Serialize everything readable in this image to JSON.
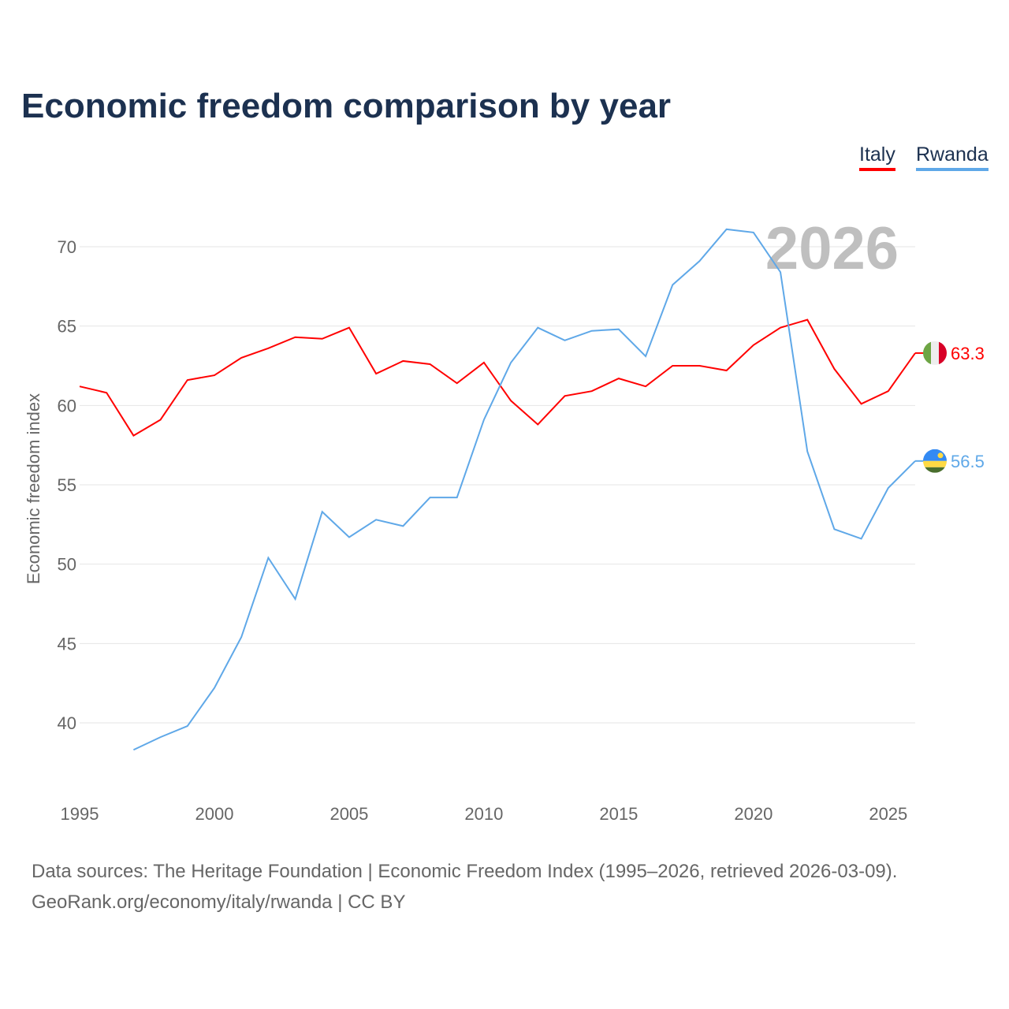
{
  "chart_data": {
    "type": "line",
    "title": "Economic freedom comparison by year",
    "xlabel": "",
    "ylabel": "Economic freedom index",
    "xlim": [
      1995,
      2026
    ],
    "ylim": [
      36,
      72.5
    ],
    "yticks": [
      40,
      45,
      50,
      55,
      60,
      65,
      70
    ],
    "xticks": [
      1995,
      2000,
      2005,
      2010,
      2015,
      2020,
      2025
    ],
    "current_year_label": "2026",
    "legend_position": "top-right",
    "series": [
      {
        "name": "Italy",
        "color": "#ff0000",
        "end_label": "63.3",
        "x": [
          1995,
          1996,
          1997,
          1998,
          1999,
          2000,
          2001,
          2002,
          2003,
          2004,
          2005,
          2006,
          2007,
          2008,
          2009,
          2010,
          2011,
          2012,
          2013,
          2014,
          2015,
          2016,
          2017,
          2018,
          2019,
          2020,
          2021,
          2022,
          2023,
          2024,
          2025,
          2026
        ],
        "values": [
          61.2,
          60.8,
          58.1,
          59.1,
          61.6,
          61.9,
          63.0,
          63.6,
          64.3,
          64.2,
          64.9,
          62.0,
          62.8,
          62.6,
          61.4,
          62.7,
          60.3,
          58.8,
          60.6,
          60.9,
          61.7,
          61.2,
          62.5,
          62.5,
          62.2,
          63.8,
          64.9,
          65.4,
          62.3,
          60.1,
          60.9,
          63.3
        ]
      },
      {
        "name": "Rwanda",
        "color": "#5fa8e8",
        "end_label": "56.5",
        "x": [
          1997,
          1998,
          1999,
          2000,
          2001,
          2002,
          2003,
          2004,
          2005,
          2006,
          2007,
          2008,
          2009,
          2010,
          2011,
          2012,
          2013,
          2014,
          2015,
          2016,
          2017,
          2018,
          2019,
          2020,
          2021,
          2022,
          2023,
          2024,
          2025,
          2026
        ],
        "values": [
          38.3,
          39.1,
          39.8,
          42.2,
          45.4,
          50.4,
          47.8,
          53.3,
          51.7,
          52.8,
          52.4,
          54.2,
          54.2,
          59.1,
          62.7,
          64.9,
          64.1,
          64.7,
          64.8,
          63.1,
          67.6,
          69.1,
          71.1,
          70.9,
          68.4,
          57.1,
          52.2,
          51.6,
          54.8,
          56.5
        ]
      }
    ]
  },
  "source_line1": "Data sources: The Heritage Foundation | Economic Freedom Index (1995–2026, retrieved 2026-03-09).",
  "source_line2": "GeoRank.org/economy/italy/rwanda | CC BY"
}
